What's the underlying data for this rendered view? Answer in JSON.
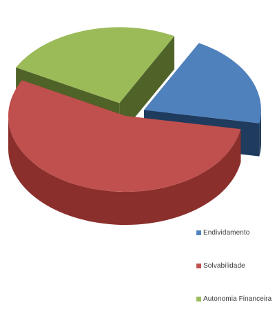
{
  "chart_data": {
    "type": "pie",
    "style": "3d-exploded",
    "title": "",
    "series": [
      {
        "name": "Endividamento",
        "share": 0.2,
        "color": "#4F81BD",
        "side_color": "#1F3B5D",
        "exploded": true
      },
      {
        "name": "Solvabilidade",
        "share": 0.55,
        "color": "#C0504D",
        "side_color": "#8B2F2D",
        "exploded": false
      },
      {
        "name": "Autonomia Financeira",
        "share": 0.25,
        "color": "#9BBB59",
        "side_color": "#4F6228",
        "exploded": true
      }
    ],
    "legend_position": "bottom-right"
  }
}
